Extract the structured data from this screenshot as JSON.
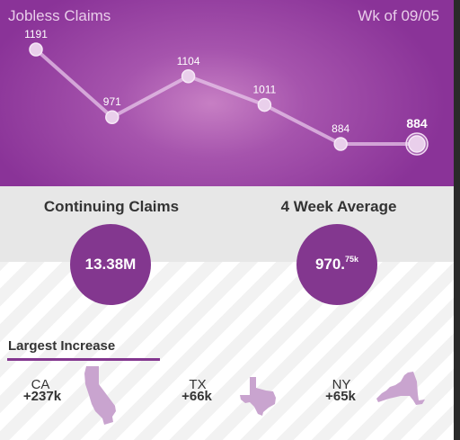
{
  "header": {
    "title": "Jobless Claims",
    "week": "Wk of 09/05"
  },
  "chart_data": {
    "type": "line",
    "title": "Jobless Claims",
    "x": [
      1,
      2,
      3,
      4,
      5,
      6
    ],
    "values": [
      1191,
      971,
      1104,
      1011,
      884,
      884
    ],
    "labels": [
      "1191",
      "971",
      "1104",
      "1011",
      "884",
      "884"
    ],
    "ylim": [
      700,
      1300
    ],
    "grid": false,
    "line_color": "#e7c6ea",
    "highlight_last": true
  },
  "stats": {
    "continuing": {
      "label": "Continuing Claims",
      "value": "13.38M"
    },
    "average": {
      "label": "4 Week Average",
      "value": "970.",
      "suffix": "75k"
    }
  },
  "largest": {
    "title": "Largest Increase",
    "states": [
      {
        "code": "CA",
        "delta": "+237k",
        "shape": "california-icon"
      },
      {
        "code": "TX",
        "delta": "+66k",
        "shape": "texas-icon"
      },
      {
        "code": "NY",
        "delta": "+65k",
        "shape": "new-york-icon"
      }
    ]
  },
  "colors": {
    "accent": "#83378f",
    "state_fill": "#c9a4cf"
  }
}
